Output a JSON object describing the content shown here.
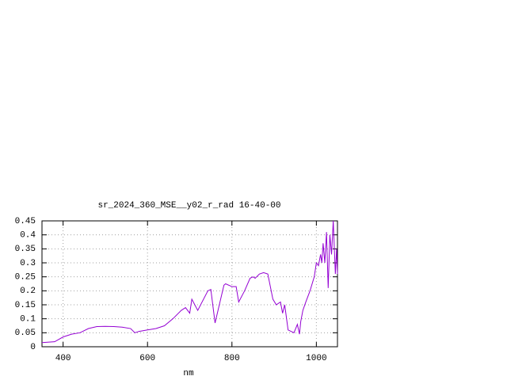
{
  "chart_data": {
    "type": "line",
    "title": "sr_2024_360_MSE__y02_r_rad 16-40-00",
    "x_label": "nm",
    "x": [
      350,
      380,
      400,
      420,
      440,
      460,
      480,
      500,
      520,
      540,
      560,
      570,
      580,
      600,
      620,
      640,
      660,
      680,
      690,
      700,
      705,
      719,
      743,
      750,
      760,
      781,
      785,
      800,
      810,
      816,
      830,
      843,
      850,
      855,
      865,
      875,
      885,
      897,
      905,
      915,
      920,
      925,
      933,
      947,
      955,
      960,
      963,
      968,
      975,
      985,
      995,
      1000,
      1005,
      1010,
      1013,
      1016,
      1020,
      1024,
      1028,
      1032,
      1036,
      1040,
      1045,
      1048,
      1050
    ],
    "series": [
      {
        "name": "rad",
        "color": "#9400d3",
        "values": [
          0.015,
          0.018,
          0.035,
          0.045,
          0.05,
          0.065,
          0.072,
          0.073,
          0.072,
          0.07,
          0.065,
          0.05,
          0.055,
          0.06,
          0.065,
          0.075,
          0.1,
          0.13,
          0.14,
          0.12,
          0.17,
          0.13,
          0.2,
          0.205,
          0.085,
          0.22,
          0.225,
          0.215,
          0.215,
          0.16,
          0.2,
          0.245,
          0.25,
          0.245,
          0.26,
          0.265,
          0.26,
          0.17,
          0.15,
          0.16,
          0.12,
          0.15,
          0.06,
          0.05,
          0.08,
          0.045,
          0.09,
          0.13,
          0.16,
          0.2,
          0.25,
          0.3,
          0.29,
          0.33,
          0.3,
          0.37,
          0.3,
          0.41,
          0.21,
          0.4,
          0.33,
          0.45,
          0.26,
          0.35,
          0.26
        ]
      }
    ],
    "xlim": [
      350,
      1050
    ],
    "xticks": [
      400,
      600,
      800,
      1000
    ],
    "ylim": [
      0,
      0.45
    ],
    "yticks": [
      0,
      0.05,
      0.1,
      0.15,
      0.2,
      0.25,
      0.3,
      0.35,
      0.4,
      0.45
    ],
    "grid": true
  }
}
